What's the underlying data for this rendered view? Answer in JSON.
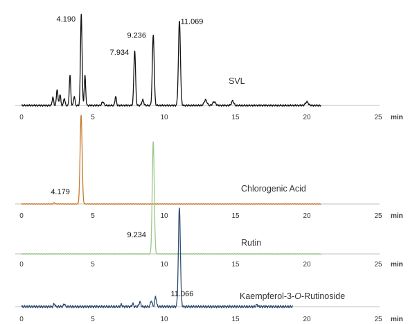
{
  "chart_data": {
    "type": "line",
    "axis_unit": "min",
    "xlim": [
      0,
      25
    ],
    "x_ticks": [
      0,
      5,
      10,
      15,
      20,
      25
    ],
    "panels": [
      {
        "name": "SVL",
        "color": "#111111",
        "x_end": 21,
        "baseline_noise": 0.006,
        "peaks": [
          {
            "rt": 2.2,
            "h": 0.09,
            "w": 0.05
          },
          {
            "rt": 2.5,
            "h": 0.18,
            "w": 0.05
          },
          {
            "rt": 2.7,
            "h": 0.12,
            "w": 0.05
          },
          {
            "rt": 3.0,
            "h": 0.08,
            "w": 0.05
          },
          {
            "rt": 3.4,
            "h": 0.33,
            "w": 0.05
          },
          {
            "rt": 3.7,
            "h": 0.1,
            "w": 0.05
          },
          {
            "rt": 4.19,
            "h": 1.0,
            "w": 0.055
          },
          {
            "rt": 4.45,
            "h": 0.32,
            "w": 0.05
          },
          {
            "rt": 5.7,
            "h": 0.04,
            "w": 0.07
          },
          {
            "rt": 6.6,
            "h": 0.1,
            "w": 0.05
          },
          {
            "rt": 7.934,
            "h": 0.6,
            "w": 0.06
          },
          {
            "rt": 8.5,
            "h": 0.06,
            "w": 0.07
          },
          {
            "rt": 9.236,
            "h": 0.77,
            "w": 0.065
          },
          {
            "rt": 11.069,
            "h": 0.92,
            "w": 0.07
          },
          {
            "rt": 12.9,
            "h": 0.06,
            "w": 0.1
          },
          {
            "rt": 13.5,
            "h": 0.04,
            "w": 0.1
          },
          {
            "rt": 14.8,
            "h": 0.05,
            "w": 0.08
          },
          {
            "rt": 20.0,
            "h": 0.04,
            "w": 0.1
          }
        ],
        "annotations": [
          {
            "text": "4.190",
            "rt": 4.19
          },
          {
            "text": "7.934",
            "rt": 7.934
          },
          {
            "text": "9.236",
            "rt": 9.236
          },
          {
            "text": "11.069",
            "rt": 11.069
          }
        ]
      },
      {
        "name": "Chlorogenic Acid",
        "color": "#c8792e",
        "x_end": 21,
        "baseline_noise": 0.002,
        "peaks": [
          {
            "rt": 2.3,
            "h": 0.015,
            "w": 0.05
          },
          {
            "rt": 4.179,
            "h": 1.0,
            "w": 0.07
          }
        ],
        "annotations": [
          {
            "text": "4.179",
            "rt": 4.179
          }
        ]
      },
      {
        "name": "Rutin",
        "color": "#9cc68a",
        "x_end": 21,
        "baseline_noise": 0.002,
        "peaks": [
          {
            "rt": 9.234,
            "h": 1.0,
            "w": 0.07
          }
        ],
        "annotations": [
          {
            "text": "9.234",
            "rt": 9.234
          }
        ]
      },
      {
        "name": "Kaempferol-3-O-Rutinoside",
        "color": "#2f4d70",
        "x_end": 19,
        "baseline_noise": 0.008,
        "peaks": [
          {
            "rt": 2.3,
            "h": 0.03,
            "w": 0.05
          },
          {
            "rt": 3.0,
            "h": 0.03,
            "w": 0.05
          },
          {
            "rt": 7.0,
            "h": 0.02,
            "w": 0.05
          },
          {
            "rt": 7.8,
            "h": 0.03,
            "w": 0.05
          },
          {
            "rt": 8.3,
            "h": 0.05,
            "w": 0.06
          },
          {
            "rt": 9.1,
            "h": 0.06,
            "w": 0.06
          },
          {
            "rt": 9.4,
            "h": 0.1,
            "w": 0.06
          },
          {
            "rt": 11.066,
            "h": 1.0,
            "w": 0.07
          },
          {
            "rt": 16.5,
            "h": 0.02,
            "w": 0.05
          }
        ],
        "annotations": [
          {
            "text": "11.066",
            "rt": 11.066
          }
        ]
      }
    ]
  }
}
